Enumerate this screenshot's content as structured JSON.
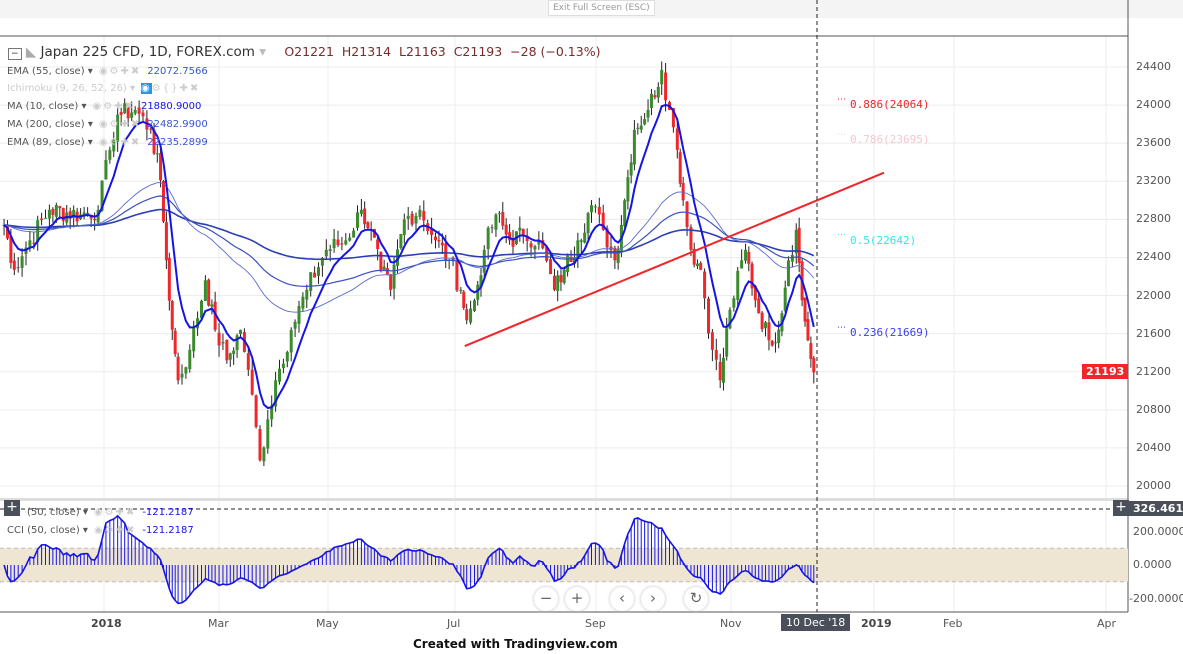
{
  "topbar": {
    "exit_label": "Exit Full Screen (ESC)"
  },
  "header": {
    "symbol": "Japan 225 CFD, 1D, FOREX.com",
    "open": "O21221",
    "high": "H21314",
    "low": "L21163",
    "close": "C21193",
    "change": "−28 (−0.13%)"
  },
  "indicators": [
    {
      "label": "EMA (55, close)",
      "value": "22072.7566"
    },
    {
      "label": "Ichimoku (9, 26, 52, 26)",
      "value": ""
    },
    {
      "label": "MA (10, close)",
      "value": "21880.9000"
    },
    {
      "label": "MA (200, close)",
      "value": "22482.9900"
    },
    {
      "label": "EMA (89, close)",
      "value": "22235.2899"
    }
  ],
  "cci_legend": [
    {
      "label": "(50, close)",
      "value": "-121.2187"
    },
    {
      "label": "CCI (50, close)",
      "value": "-121.2187"
    }
  ],
  "price_axis": {
    "ticks": [
      "24400",
      "24000",
      "23600",
      "23200",
      "22800",
      "22400",
      "22000",
      "21600",
      "21200",
      "20800",
      "20400",
      "20000"
    ],
    "last_price": "21193",
    "last_color": "#f0262a"
  },
  "cci_axis": {
    "ticks": [
      "200.0000",
      "0.0000",
      "-200.0000"
    ],
    "crosshair_value": "326.4611"
  },
  "time_axis": {
    "ticks": [
      "2018",
      "Mar",
      "May",
      "Jul",
      "Sep",
      "Nov",
      "2019",
      "Feb",
      "Apr"
    ],
    "crosshair_date": "10 Dec '18"
  },
  "fib_levels": [
    {
      "label": "0.886(24064)",
      "price": 24064,
      "color": "#f0262a"
    },
    {
      "label": "0.786(23695)",
      "price": 23695,
      "color": "#f2c9d0"
    },
    {
      "label": "0.5(22642)",
      "price": 22642,
      "color": "#2ee6f0"
    },
    {
      "label": "0.236(21669)",
      "price": 21669,
      "color": "#3a3ef0"
    }
  ],
  "nav_buttons": [
    "−",
    "+",
    "‹",
    "›",
    "↻"
  ],
  "credit": "Created with Tradingview.com",
  "chart_data": {
    "type": "candlestick",
    "symbol": "Japan 225 CFD",
    "interval": "1D",
    "ylim": [
      19900,
      24700
    ],
    "closes": [
      [
        "2017-11-09",
        22900
      ],
      [
        "2017-11-16",
        22270
      ],
      [
        "2017-11-24",
        22580
      ],
      [
        "2017-12-04",
        22900
      ],
      [
        "2017-12-20",
        22850
      ],
      [
        "2017-12-29",
        22900
      ],
      [
        "2018-01-04",
        23530
      ],
      [
        "2018-01-08",
        23900
      ],
      [
        "2018-01-17",
        23950
      ],
      [
        "2018-01-25",
        23740
      ],
      [
        "2018-01-30",
        23210
      ],
      [
        "2018-02-02",
        22370
      ],
      [
        "2018-02-05",
        21640
      ],
      [
        "2018-02-08",
        21110
      ],
      [
        "2018-02-14",
        21430
      ],
      [
        "2018-02-22",
        22160
      ],
      [
        "2018-02-27",
        21640
      ],
      [
        "2018-03-05",
        21320
      ],
      [
        "2018-03-12",
        21640
      ],
      [
        "2018-03-16",
        21220
      ],
      [
        "2018-03-22",
        20270
      ],
      [
        "2018-03-26",
        20700
      ],
      [
        "2018-03-30",
        21110
      ],
      [
        "2018-04-07",
        21640
      ],
      [
        "2018-04-15",
        22060
      ],
      [
        "2018-04-25",
        22480
      ],
      [
        "2018-05-05",
        22580
      ],
      [
        "2018-05-13",
        22900
      ],
      [
        "2018-05-18",
        22690
      ],
      [
        "2018-05-23",
        22270
      ],
      [
        "2018-05-28",
        22060
      ],
      [
        "2018-06-04",
        22800
      ],
      [
        "2018-06-12",
        22900
      ],
      [
        "2018-06-20",
        22580
      ],
      [
        "2018-06-27",
        22370
      ],
      [
        "2018-07-03",
        22060
      ],
      [
        "2018-07-06",
        21740
      ],
      [
        "2018-07-10",
        21950
      ],
      [
        "2018-07-15",
        22480
      ],
      [
        "2018-07-21",
        22850
      ],
      [
        "2018-07-28",
        22580
      ],
      [
        "2018-08-04",
        22640
      ],
      [
        "2018-08-12",
        22580
      ],
      [
        "2018-08-20",
        22060
      ],
      [
        "2018-08-25",
        22270
      ],
      [
        "2018-09-01",
        22580
      ],
      [
        "2018-09-08",
        22950
      ],
      [
        "2018-09-14",
        22690
      ],
      [
        "2018-09-20",
        22370
      ],
      [
        "2018-09-25",
        23000
      ],
      [
        "2018-09-30",
        23740
      ],
      [
        "2018-10-07",
        23950
      ],
      [
        "2018-10-14",
        24370
      ],
      [
        "2018-10-18",
        23950
      ],
      [
        "2018-10-22",
        23530
      ],
      [
        "2018-10-25",
        23000
      ],
      [
        "2018-10-29",
        22480
      ],
      [
        "2018-11-03",
        22270
      ],
      [
        "2018-11-09",
        21430
      ],
      [
        "2018-11-13",
        21110
      ],
      [
        "2018-11-18",
        21850
      ],
      [
        "2018-11-26",
        22480
      ],
      [
        "2018-12-01",
        21950
      ],
      [
        "2018-12-08",
        21530
      ],
      [
        "2018-12-13",
        21640
      ],
      [
        "2018-12-18",
        22370
      ],
      [
        "2018-12-22",
        22690
      ],
      [
        "2018-12-25",
        21950
      ],
      [
        "2018-12-28",
        21530
      ],
      [
        "2018-12-31",
        21193
      ]
    ],
    "trendline": {
      "start": [
        "2018-07-05",
        21470
      ],
      "end": [
        "2019-02-05",
        23290
      ],
      "color": "#f0262a"
    },
    "ma_color": "#1414e6",
    "up_color": "#3c8a2e",
    "down_color": "#f0262a"
  }
}
